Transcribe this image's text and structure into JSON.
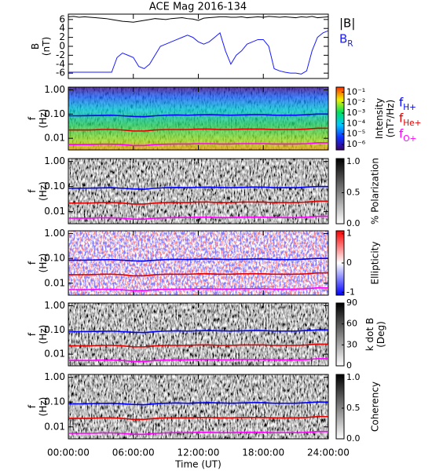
{
  "chart_data": [
    {
      "type": "line",
      "title": "ACE Mag 2016-134",
      "ylabel": "B (nT)",
      "xlim": [
        0,
        24
      ],
      "ylim": [
        -7.2,
        7.2
      ],
      "yticks": [
        -6,
        -4,
        -2,
        0,
        2,
        4,
        6
      ],
      "x": [
        0,
        0.5,
        1,
        1.5,
        2,
        2.5,
        3,
        3.5,
        4,
        4.5,
        5,
        5.5,
        6,
        6.5,
        7,
        7.5,
        8,
        8.5,
        9,
        9.5,
        10,
        10.5,
        11,
        11.5,
        12,
        12.5,
        13,
        13.5,
        14,
        14.5,
        15,
        15.5,
        16,
        16.5,
        17,
        17.5,
        18,
        18.5,
        19,
        19.5,
        20,
        20.5,
        21,
        21.5,
        22,
        22.5,
        23,
        23.5,
        24
      ],
      "series": [
        {
          "name": "|B|",
          "color": "#000000",
          "values": [
            6.6,
            6.7,
            6.5,
            6.6,
            6.5,
            6.4,
            6.3,
            6.2,
            6.0,
            5.8,
            5.6,
            5.5,
            5.4,
            5.6,
            5.8,
            6.0,
            6.2,
            6.1,
            6.0,
            6.2,
            6.3,
            6.4,
            6.2,
            6.1,
            5.8,
            6.3,
            6.4,
            6.5,
            6.6,
            6.6,
            6.5,
            6.5,
            6.6,
            6.4,
            6.5,
            6.6,
            6.5,
            6.7,
            6.6,
            6.5,
            6.6,
            6.5,
            6.4,
            6.6,
            6.5,
            6.7,
            6.4,
            6.5,
            6.6
          ]
        },
        {
          "name": "B_R",
          "color": "#1a1aff",
          "values": [
            -5.8,
            -5.8,
            -5.8,
            -5.8,
            -5.8,
            -5.8,
            -5.8,
            -5.8,
            -5.8,
            -2.5,
            -1.5,
            -2,
            -2.5,
            -4.5,
            -5,
            -4,
            -2,
            0,
            0.5,
            1,
            1.5,
            2,
            2.5,
            2,
            1,
            0.5,
            1,
            2,
            3,
            -1,
            -4,
            -2,
            -1,
            0.5,
            1,
            1.5,
            1.5,
            0,
            -5,
            -5.5,
            -5.8,
            -6,
            -6,
            -6.2,
            -5.5,
            -1,
            2,
            3,
            3.5
          ]
        }
      ]
    },
    {
      "type": "spectrogram",
      "ylabel": "f (Hz)",
      "ylog": true,
      "xlim": [
        0,
        24
      ],
      "ylim": [
        0.0033,
        1.3
      ],
      "yticks": [
        {
          "value": 0.01,
          "label": "0.01"
        },
        {
          "value": 0.1,
          "label": "0.10"
        },
        {
          "value": 1,
          "label": "1.00"
        }
      ],
      "colormap": "rainbow",
      "clabel": "Intensity (nT²/Hz)",
      "clog": true,
      "clim": [
        3e-07,
        0.3
      ],
      "cticks": [
        {
          "value": 1e-06,
          "label": "10⁻⁶"
        },
        {
          "value": 1e-05,
          "label": "10⁻⁵"
        },
        {
          "value": 0.0001,
          "label": "10⁻⁴"
        },
        {
          "value": 0.001,
          "label": "10⁻³"
        },
        {
          "value": 0.01,
          "label": "10⁻²"
        },
        {
          "value": 0.1,
          "label": "10⁻¹"
        }
      ],
      "x": [
        0,
        1,
        2,
        3,
        4,
        5,
        6,
        7,
        8,
        9,
        10,
        11,
        12,
        13,
        14,
        15,
        16,
        17,
        18,
        19,
        20,
        21,
        22,
        23,
        24
      ],
      "series": [
        {
          "name": "f_H+",
          "color": "#0000ff",
          "values": [
            0.085,
            0.085,
            0.086,
            0.088,
            0.09,
            0.085,
            0.08,
            0.078,
            0.085,
            0.09,
            0.092,
            0.09,
            0.093,
            0.095,
            0.092,
            0.09,
            0.092,
            0.095,
            0.095,
            0.09,
            0.09,
            0.09,
            0.095,
            0.1,
            0.1
          ]
        },
        {
          "name": "f_He+",
          "color": "#e00000",
          "values": [
            0.022,
            0.022,
            0.022,
            0.023,
            0.023,
            0.022,
            0.02,
            0.02,
            0.022,
            0.023,
            0.023,
            0.023,
            0.024,
            0.024,
            0.023,
            0.023,
            0.024,
            0.024,
            0.024,
            0.023,
            0.023,
            0.023,
            0.024,
            0.026,
            0.026
          ]
        },
        {
          "name": "f_O+",
          "color": "#ff00ff",
          "values": [
            0.0055,
            0.0055,
            0.0055,
            0.0057,
            0.0057,
            0.0055,
            0.005,
            0.005,
            0.0055,
            0.0057,
            0.0058,
            0.0058,
            0.006,
            0.006,
            0.0058,
            0.0058,
            0.006,
            0.006,
            0.006,
            0.0058,
            0.0058,
            0.0058,
            0.006,
            0.0065,
            0.0065
          ]
        }
      ]
    },
    {
      "type": "spectrogram",
      "ylabel": "f (Hz)",
      "ylog": true,
      "xlim": [
        0,
        24
      ],
      "ylim": [
        0.0033,
        1.3
      ],
      "yticks": [
        {
          "value": 0.01,
          "label": "0.01"
        },
        {
          "value": 0.1,
          "label": "0.10"
        },
        {
          "value": 1,
          "label": "1.00"
        }
      ],
      "colormap": "gray",
      "clabel": "% Polarization",
      "clim": [
        0,
        1.05
      ],
      "cticks": [
        {
          "value": 0,
          "label": "0.0"
        },
        {
          "value": 0.5,
          "label": "0.5"
        },
        {
          "value": 1,
          "label": "1.0"
        }
      ],
      "x": [
        0,
        1,
        2,
        3,
        4,
        5,
        6,
        7,
        8,
        9,
        10,
        11,
        12,
        13,
        14,
        15,
        16,
        17,
        18,
        19,
        20,
        21,
        22,
        23,
        24
      ],
      "series": [
        {
          "color": "#0000ff",
          "values": [
            0.085,
            0.085,
            0.086,
            0.088,
            0.09,
            0.085,
            0.08,
            0.078,
            0.085,
            0.09,
            0.092,
            0.09,
            0.093,
            0.095,
            0.092,
            0.09,
            0.092,
            0.095,
            0.095,
            0.09,
            0.09,
            0.09,
            0.095,
            0.1,
            0.1
          ]
        },
        {
          "color": "#e00000",
          "values": [
            0.022,
            0.022,
            0.022,
            0.023,
            0.023,
            0.022,
            0.02,
            0.02,
            0.022,
            0.023,
            0.023,
            0.023,
            0.024,
            0.024,
            0.023,
            0.023,
            0.024,
            0.024,
            0.024,
            0.023,
            0.023,
            0.023,
            0.024,
            0.026,
            0.026
          ]
        },
        {
          "color": "#ff00ff",
          "values": [
            0.0055,
            0.0055,
            0.0055,
            0.0057,
            0.0057,
            0.0055,
            0.005,
            0.005,
            0.0055,
            0.0057,
            0.0058,
            0.0058,
            0.006,
            0.006,
            0.0058,
            0.0058,
            0.006,
            0.006,
            0.006,
            0.0058,
            0.0058,
            0.0058,
            0.006,
            0.0065,
            0.0065
          ]
        }
      ]
    },
    {
      "type": "spectrogram",
      "ylabel": "f (Hz)",
      "ylog": true,
      "xlim": [
        0,
        24
      ],
      "ylim": [
        0.0033,
        1.3
      ],
      "yticks": [
        {
          "value": 0.01,
          "label": "0.01"
        },
        {
          "value": 0.1,
          "label": "0.10"
        },
        {
          "value": 1,
          "label": "1.00"
        }
      ],
      "colormap": "bwr",
      "clabel": "Ellipticity",
      "clim": [
        -1.1,
        1.1
      ],
      "cticks": [
        -1,
        0,
        1
      ],
      "x": [
        0,
        1,
        2,
        3,
        4,
        5,
        6,
        7,
        8,
        9,
        10,
        11,
        12,
        13,
        14,
        15,
        16,
        17,
        18,
        19,
        20,
        21,
        22,
        23,
        24
      ],
      "series": [
        {
          "color": "#0000ff",
          "values": [
            0.085,
            0.085,
            0.086,
            0.088,
            0.09,
            0.085,
            0.08,
            0.078,
            0.085,
            0.09,
            0.092,
            0.09,
            0.093,
            0.095,
            0.092,
            0.09,
            0.092,
            0.095,
            0.095,
            0.09,
            0.09,
            0.09,
            0.095,
            0.1,
            0.1
          ]
        },
        {
          "color": "#e00000",
          "values": [
            0.022,
            0.022,
            0.022,
            0.023,
            0.023,
            0.022,
            0.02,
            0.02,
            0.022,
            0.023,
            0.023,
            0.023,
            0.024,
            0.024,
            0.023,
            0.023,
            0.024,
            0.024,
            0.024,
            0.023,
            0.023,
            0.023,
            0.024,
            0.026,
            0.026
          ]
        },
        {
          "color": "#ff00ff",
          "values": [
            0.0055,
            0.0055,
            0.0055,
            0.0057,
            0.0057,
            0.0055,
            0.005,
            0.005,
            0.0055,
            0.0057,
            0.0058,
            0.0058,
            0.006,
            0.006,
            0.0058,
            0.0058,
            0.006,
            0.006,
            0.006,
            0.0058,
            0.0058,
            0.0058,
            0.006,
            0.0065,
            0.0065
          ]
        }
      ]
    },
    {
      "type": "spectrogram",
      "ylabel": "f (Hz)",
      "ylog": true,
      "xlim": [
        0,
        24
      ],
      "ylim": [
        0.0033,
        1.3
      ],
      "yticks": [
        {
          "value": 0.01,
          "label": "0.01"
        },
        {
          "value": 0.1,
          "label": "0.10"
        },
        {
          "value": 1,
          "label": "1.00"
        }
      ],
      "colormap": "gray",
      "clabel": "k dot B (Deg)",
      "clim": [
        0,
        90
      ],
      "cticks": [
        0,
        30,
        60,
        90
      ],
      "x": [
        0,
        1,
        2,
        3,
        4,
        5,
        6,
        7,
        8,
        9,
        10,
        11,
        12,
        13,
        14,
        15,
        16,
        17,
        18,
        19,
        20,
        21,
        22,
        23,
        24
      ],
      "series": [
        {
          "color": "#0000ff",
          "values": [
            0.085,
            0.085,
            0.086,
            0.088,
            0.09,
            0.085,
            0.08,
            0.078,
            0.085,
            0.09,
            0.092,
            0.09,
            0.093,
            0.095,
            0.092,
            0.09,
            0.092,
            0.095,
            0.095,
            0.09,
            0.09,
            0.09,
            0.095,
            0.1,
            0.1
          ]
        },
        {
          "color": "#e00000",
          "values": [
            0.022,
            0.022,
            0.022,
            0.023,
            0.023,
            0.022,
            0.02,
            0.02,
            0.022,
            0.023,
            0.023,
            0.023,
            0.024,
            0.024,
            0.023,
            0.023,
            0.024,
            0.024,
            0.024,
            0.023,
            0.023,
            0.023,
            0.024,
            0.026,
            0.026
          ]
        },
        {
          "color": "#ff00ff",
          "values": [
            0.0055,
            0.0055,
            0.0055,
            0.0057,
            0.0057,
            0.0055,
            0.005,
            0.005,
            0.0055,
            0.0057,
            0.0058,
            0.0058,
            0.006,
            0.006,
            0.0058,
            0.0058,
            0.006,
            0.006,
            0.006,
            0.0058,
            0.0058,
            0.0058,
            0.006,
            0.0065,
            0.0065
          ]
        }
      ]
    },
    {
      "type": "spectrogram",
      "ylabel": "f (Hz)",
      "ylog": true,
      "xlim": [
        0,
        24
      ],
      "ylim": [
        0.0033,
        1.3
      ],
      "yticks": [
        {
          "value": 0.01,
          "label": "0.01"
        },
        {
          "value": 0.1,
          "label": "0.10"
        },
        {
          "value": 1,
          "label": "1.00"
        }
      ],
      "colormap": "gray",
      "clabel": "Coherency",
      "clim": [
        0,
        1.05
      ],
      "cticks": [
        {
          "value": 0,
          "label": "0.0"
        },
        {
          "value": 0.5,
          "label": "0.5"
        },
        {
          "value": 1,
          "label": "1.0"
        }
      ],
      "xlabel": "Time (UT)",
      "xticks": [
        {
          "value": 0,
          "label": "00:00:00"
        },
        {
          "value": 6,
          "label": "06:00:00"
        },
        {
          "value": 12,
          "label": "12:00:00"
        },
        {
          "value": 18,
          "label": "18:00:00"
        },
        {
          "value": 24,
          "label": "24:00:00"
        }
      ],
      "x": [
        0,
        1,
        2,
        3,
        4,
        5,
        6,
        7,
        8,
        9,
        10,
        11,
        12,
        13,
        14,
        15,
        16,
        17,
        18,
        19,
        20,
        21,
        22,
        23,
        24
      ],
      "series": [
        {
          "color": "#0000ff",
          "values": [
            0.085,
            0.085,
            0.086,
            0.088,
            0.09,
            0.085,
            0.08,
            0.078,
            0.085,
            0.09,
            0.092,
            0.09,
            0.093,
            0.095,
            0.092,
            0.09,
            0.092,
            0.095,
            0.095,
            0.09,
            0.09,
            0.09,
            0.095,
            0.1,
            0.1
          ]
        },
        {
          "color": "#e00000",
          "values": [
            0.022,
            0.022,
            0.022,
            0.023,
            0.023,
            0.022,
            0.02,
            0.02,
            0.022,
            0.023,
            0.023,
            0.023,
            0.024,
            0.024,
            0.023,
            0.023,
            0.024,
            0.024,
            0.024,
            0.023,
            0.023,
            0.023,
            0.024,
            0.026,
            0.026
          ]
        },
        {
          "color": "#ff00ff",
          "values": [
            0.0055,
            0.0055,
            0.0055,
            0.0057,
            0.0057,
            0.0055,
            0.005,
            0.005,
            0.0055,
            0.0057,
            0.0058,
            0.0058,
            0.006,
            0.006,
            0.0058,
            0.0058,
            0.006,
            0.006,
            0.006,
            0.0058,
            0.0058,
            0.0058,
            0.006,
            0.0065,
            0.0065
          ]
        }
      ]
    }
  ]
}
